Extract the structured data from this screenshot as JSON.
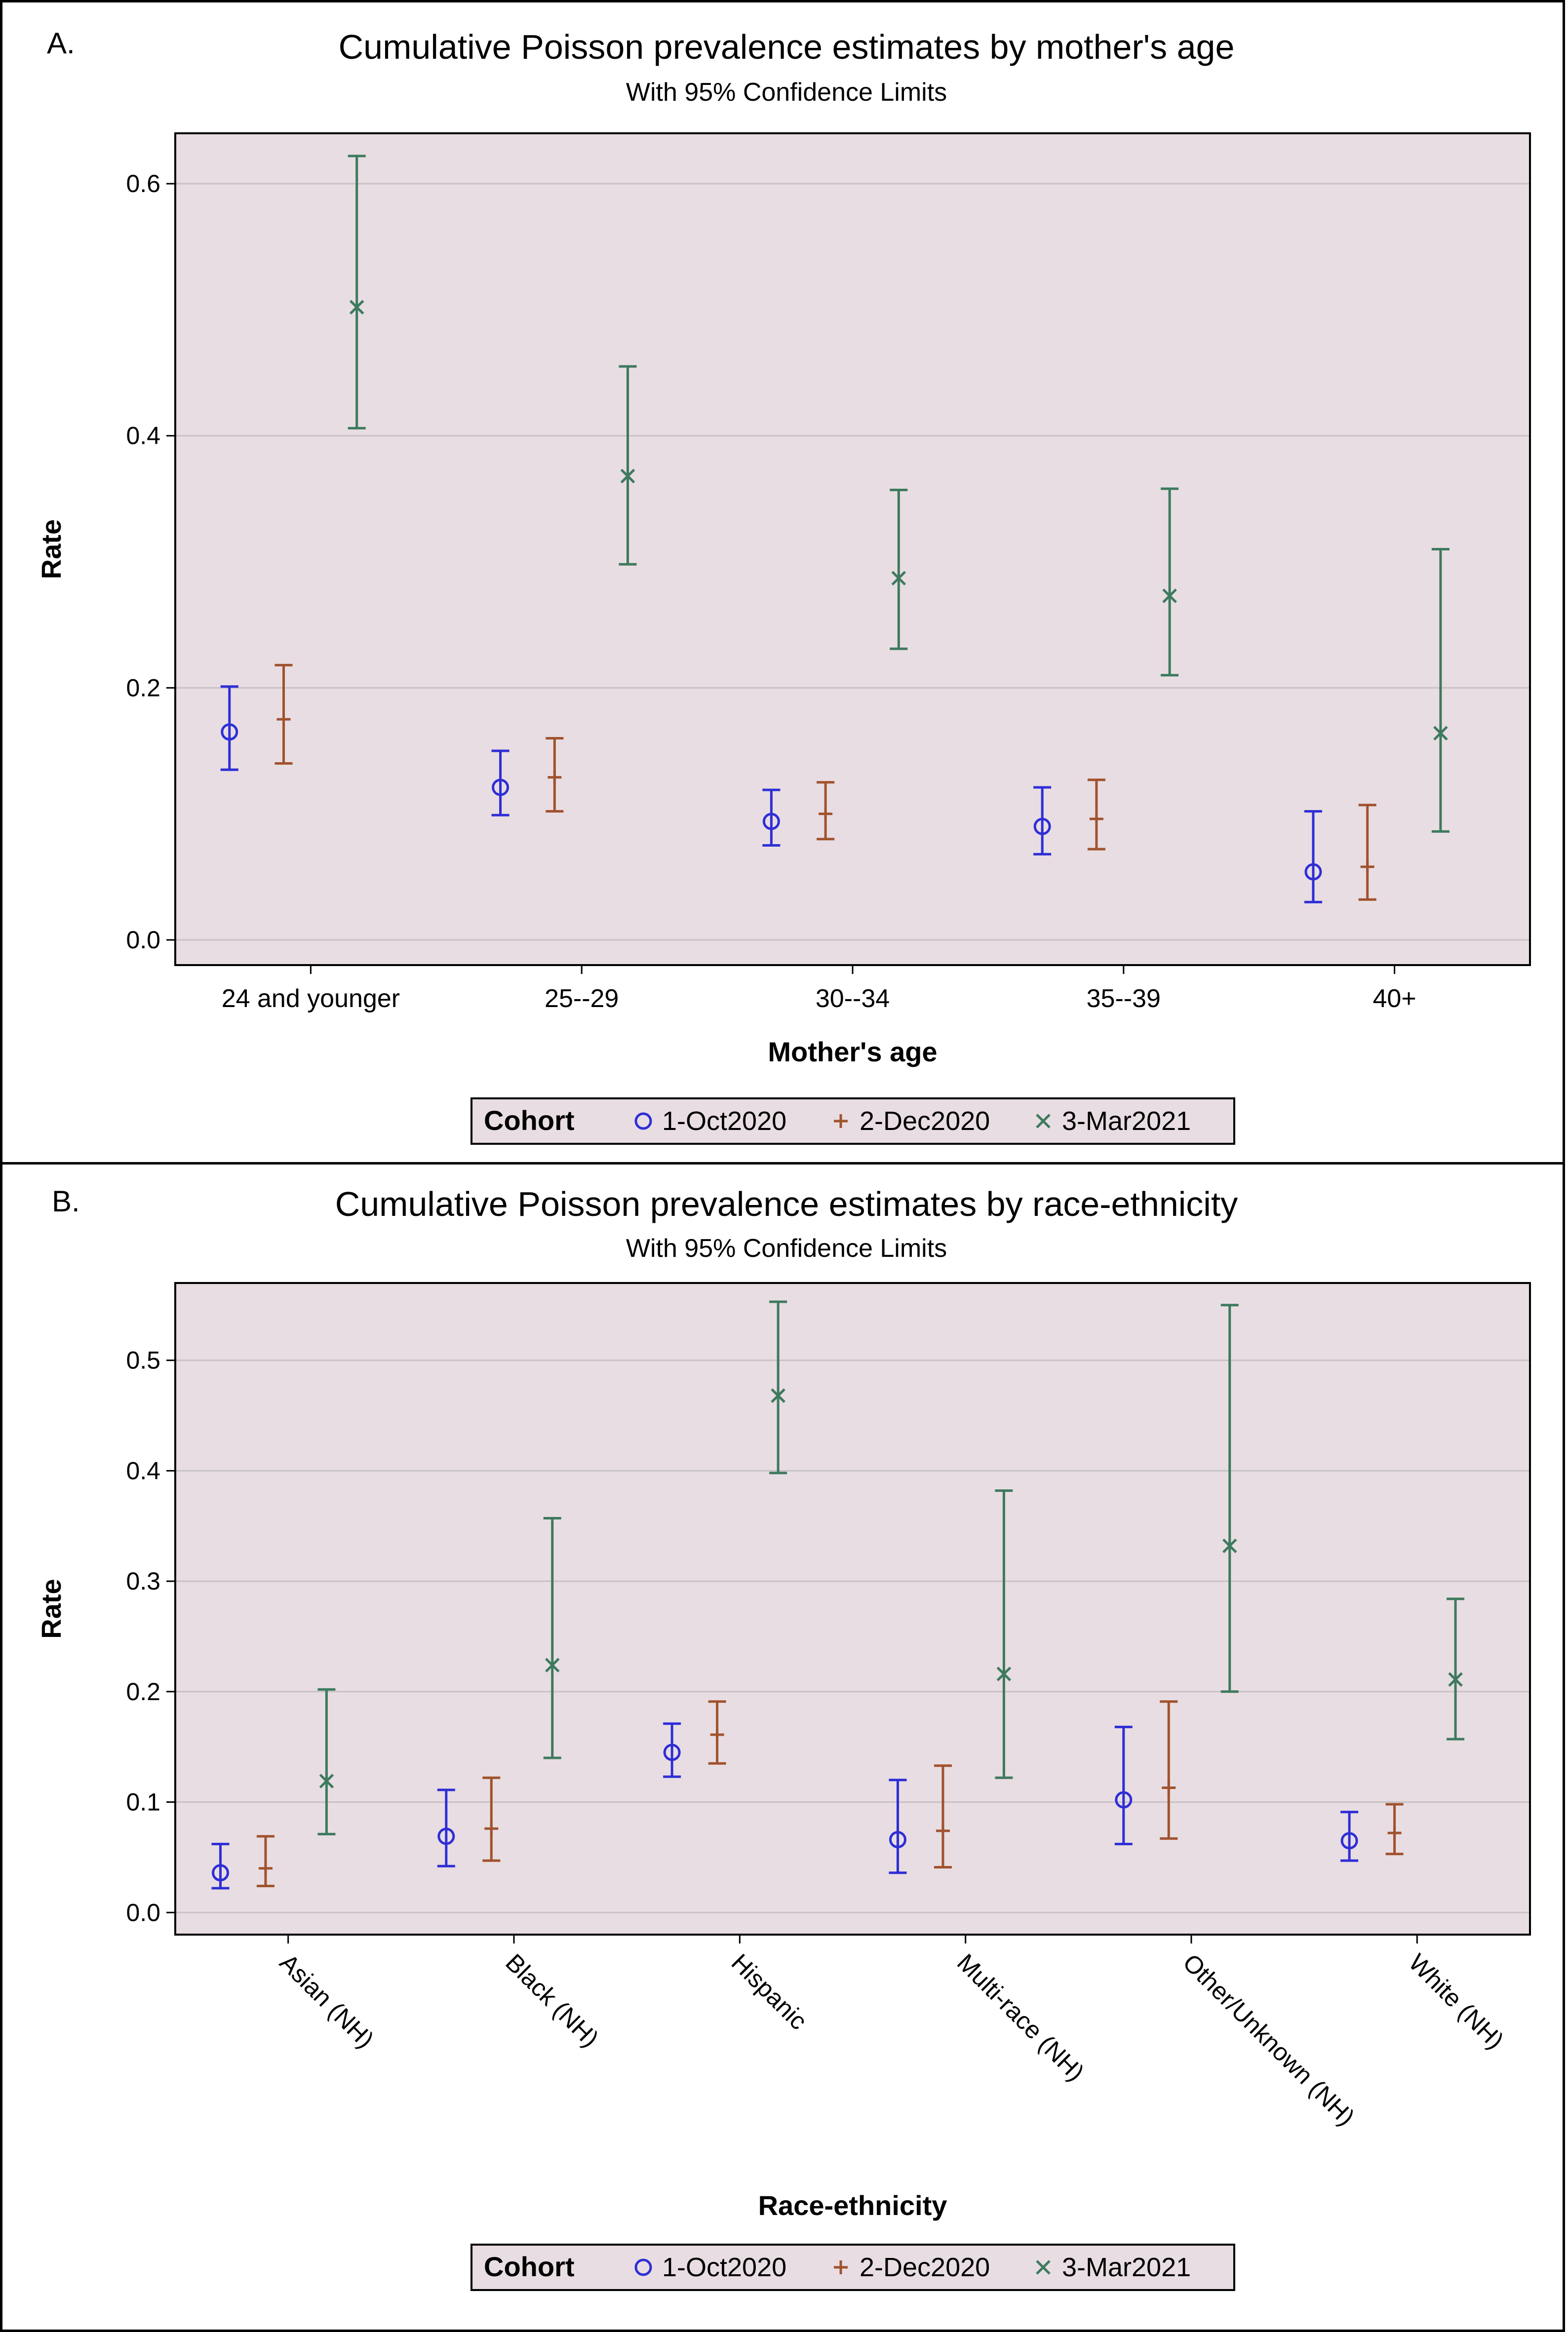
{
  "chart_data": [
    {
      "type": "scatter",
      "panel_label": "A.",
      "title": "Cumulative Poisson prevalence estimates by mother's age",
      "subtitle": "With 95% Confidence Limits",
      "xlabel": "Mother's age",
      "ylabel": "Rate",
      "ylim": [
        -0.02,
        0.64
      ],
      "yticks": [
        0.0,
        0.2,
        0.4,
        0.6
      ],
      "ytick_labels": [
        "0.0",
        "0.2",
        "0.4",
        "0.6"
      ],
      "grid": true,
      "categories": [
        "24 and younger",
        "25--29",
        "30--34",
        "35--39",
        "40+"
      ],
      "legend_title": "Cohort",
      "series": [
        {
          "name": "1-Oct2020",
          "marker": "circle",
          "color": "#2E2ED6",
          "values": [
            0.165,
            0.121,
            0.094,
            0.09,
            0.054
          ],
          "lower": [
            0.135,
            0.099,
            0.075,
            0.068,
            0.03
          ],
          "upper": [
            0.201,
            0.15,
            0.119,
            0.121,
            0.102
          ]
        },
        {
          "name": "2-Dec2020",
          "marker": "plus",
          "color": "#A0522D",
          "values": [
            0.175,
            0.129,
            0.1,
            0.096,
            0.058
          ],
          "lower": [
            0.14,
            0.102,
            0.08,
            0.072,
            0.032
          ],
          "upper": [
            0.218,
            0.16,
            0.125,
            0.127,
            0.107
          ]
        },
        {
          "name": "3-Mar2021",
          "marker": "x",
          "color": "#3D7A5E",
          "values": [
            0.502,
            0.368,
            0.287,
            0.273,
            0.164
          ],
          "lower": [
            0.406,
            0.298,
            0.231,
            0.21,
            0.086
          ],
          "upper": [
            0.622,
            0.455,
            0.357,
            0.358,
            0.31
          ]
        }
      ]
    },
    {
      "type": "scatter",
      "panel_label": "B.",
      "title": "Cumulative Poisson prevalence estimates by race-ethnicity",
      "subtitle": "With 95% Confidence Limits",
      "xlabel": "Race-ethnicity",
      "ylabel": "Rate",
      "ylim": [
        -0.02,
        0.57
      ],
      "yticks": [
        0.0,
        0.1,
        0.2,
        0.3,
        0.4,
        0.5
      ],
      "ytick_labels": [
        "0.0",
        "0.1",
        "0.2",
        "0.3",
        "0.4",
        "0.5"
      ],
      "grid": true,
      "categories": [
        "Asian (NH)",
        "Black (NH)",
        "Hispanic",
        "Multi-race (NH)",
        "Other/Unknown (NH)",
        "White (NH)"
      ],
      "legend_title": "Cohort",
      "series": [
        {
          "name": "1-Oct2020",
          "marker": "circle",
          "color": "#2E2ED6",
          "values": [
            0.036,
            0.069,
            0.145,
            0.066,
            0.102,
            0.065
          ],
          "lower": [
            0.022,
            0.042,
            0.123,
            0.036,
            0.062,
            0.047
          ],
          "upper": [
            0.062,
            0.111,
            0.171,
            0.12,
            0.168,
            0.091
          ]
        },
        {
          "name": "2-Dec2020",
          "marker": "plus",
          "color": "#A0522D",
          "values": [
            0.04,
            0.076,
            0.161,
            0.074,
            0.113,
            0.072
          ],
          "lower": [
            0.024,
            0.047,
            0.135,
            0.041,
            0.067,
            0.053
          ],
          "upper": [
            0.069,
            0.122,
            0.191,
            0.133,
            0.191,
            0.098
          ]
        },
        {
          "name": "3-Mar2021",
          "marker": "x",
          "color": "#3D7A5E",
          "values": [
            0.119,
            0.224,
            0.468,
            0.216,
            0.332,
            0.211
          ],
          "lower": [
            0.071,
            0.14,
            0.398,
            0.122,
            0.2,
            0.157
          ],
          "upper": [
            0.202,
            0.357,
            0.553,
            0.382,
            0.55,
            0.284
          ]
        }
      ]
    }
  ]
}
